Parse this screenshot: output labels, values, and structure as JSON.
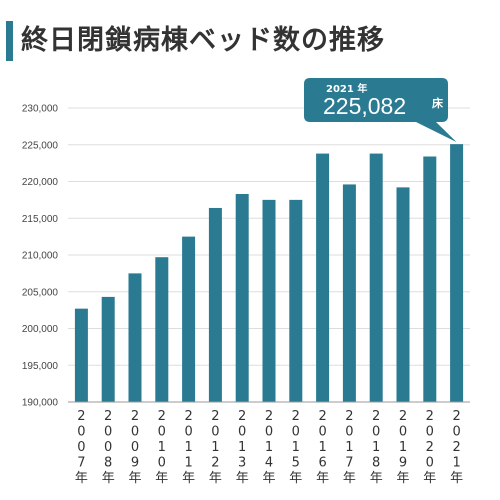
{
  "title": "終日閉鎖病棟ベッド数の推移",
  "accent_color": "#2a7a92",
  "callout": {
    "year_label": "2021 年",
    "value": "225,082",
    "unit": "床"
  },
  "chart_data": {
    "type": "bar",
    "categories": [
      "2007年",
      "2008年",
      "2009年",
      "2010年",
      "2011年",
      "2012年",
      "2013年",
      "2014年",
      "2015年",
      "2016年",
      "2017年",
      "2018年",
      "2019年",
      "2020年",
      "2021年"
    ],
    "values": [
      202700,
      204300,
      207500,
      209700,
      212500,
      216400,
      218300,
      217500,
      217500,
      223800,
      219600,
      223800,
      219200,
      223400,
      225082
    ],
    "ylim": [
      190000,
      230000
    ],
    "yticks": [
      190000,
      195000,
      200000,
      205000,
      210000,
      215000,
      220000,
      225000,
      230000
    ],
    "ytick_labels": [
      "190,000",
      "195,000",
      "200,000",
      "205,000",
      "210,000",
      "215,000",
      "220,000",
      "225,000",
      "230,000"
    ],
    "grid": true,
    "bar_color": "#2a7a92"
  }
}
